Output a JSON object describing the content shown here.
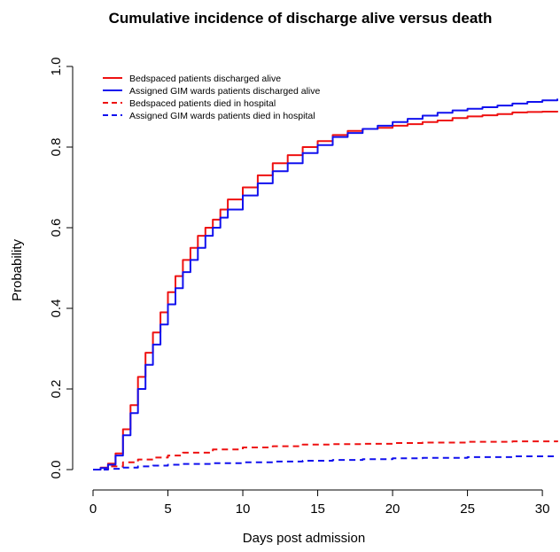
{
  "chart_data": {
    "type": "line",
    "title": "Cumulative incidence of discharge alive versus death",
    "xlabel": "Days post admission",
    "ylabel": "Probability",
    "xlim": [
      0,
      31
    ],
    "ylim": [
      0,
      1
    ],
    "xticks": [
      0,
      5,
      10,
      15,
      20,
      25,
      30
    ],
    "yticks": [
      0.0,
      0.2,
      0.4,
      0.6,
      0.8,
      1.0
    ],
    "xtick_labels": [
      "0",
      "5",
      "10",
      "15",
      "20",
      "25",
      "30"
    ],
    "ytick_labels": [
      "0.0",
      "0.2",
      "0.4",
      "0.6",
      "0.8",
      "1.0"
    ],
    "grid": false,
    "legend_position": "top-left",
    "series": [
      {
        "name": "Bedspaced patients discharged alive",
        "color": "#ee1111",
        "dash": "solid",
        "x": [
          0,
          0.5,
          1,
          1.5,
          2,
          2.5,
          3,
          3.5,
          4,
          4.5,
          5,
          5.5,
          6,
          6.5,
          7,
          7.5,
          8,
          8.5,
          9,
          10,
          11,
          12,
          13,
          14,
          15,
          16,
          17,
          18,
          19,
          20,
          21,
          22,
          23,
          24,
          25,
          26,
          27,
          28,
          29,
          30,
          31
        ],
        "y": [
          0,
          0.005,
          0.015,
          0.04,
          0.1,
          0.16,
          0.23,
          0.29,
          0.34,
          0.39,
          0.44,
          0.48,
          0.52,
          0.55,
          0.58,
          0.6,
          0.62,
          0.645,
          0.67,
          0.7,
          0.73,
          0.76,
          0.78,
          0.8,
          0.815,
          0.83,
          0.84,
          0.845,
          0.848,
          0.853,
          0.857,
          0.862,
          0.866,
          0.872,
          0.876,
          0.879,
          0.882,
          0.886,
          0.887,
          0.888,
          0.89
        ]
      },
      {
        "name": "Assigned GIM wards patients discharged alive",
        "color": "#1111ee",
        "dash": "solid",
        "x": [
          0,
          0.5,
          1,
          1.5,
          2,
          2.5,
          3,
          3.5,
          4,
          4.5,
          5,
          5.5,
          6,
          6.5,
          7,
          7.5,
          8,
          8.5,
          9,
          10,
          11,
          12,
          13,
          14,
          15,
          16,
          17,
          18,
          19,
          20,
          21,
          22,
          23,
          24,
          25,
          26,
          27,
          28,
          29,
          30,
          31
        ],
        "y": [
          0,
          0.004,
          0.012,
          0.035,
          0.085,
          0.14,
          0.2,
          0.26,
          0.31,
          0.36,
          0.41,
          0.45,
          0.49,
          0.52,
          0.55,
          0.58,
          0.6,
          0.625,
          0.645,
          0.68,
          0.71,
          0.74,
          0.76,
          0.785,
          0.805,
          0.825,
          0.835,
          0.845,
          0.853,
          0.862,
          0.87,
          0.878,
          0.885,
          0.891,
          0.895,
          0.899,
          0.903,
          0.908,
          0.912,
          0.916,
          0.92
        ]
      },
      {
        "name": "Bedspaced patients died in hospital",
        "color": "#ee1111",
        "dash": "dashed",
        "x": [
          0,
          1,
          2,
          3,
          4,
          5,
          6,
          8,
          10,
          12,
          14,
          16,
          18,
          20,
          22,
          25,
          28,
          31
        ],
        "y": [
          0,
          0.008,
          0.018,
          0.025,
          0.03,
          0.035,
          0.042,
          0.05,
          0.055,
          0.058,
          0.062,
          0.063,
          0.064,
          0.066,
          0.067,
          0.069,
          0.07,
          0.072
        ]
      },
      {
        "name": "Assigned GIM wards patients died in hospital",
        "color": "#1111ee",
        "dash": "dashed",
        "x": [
          0,
          1,
          2,
          3,
          4,
          5,
          6,
          8,
          10,
          12,
          14,
          16,
          18,
          20,
          22,
          25,
          28,
          31
        ],
        "y": [
          0,
          0.002,
          0.005,
          0.008,
          0.01,
          0.012,
          0.014,
          0.016,
          0.018,
          0.02,
          0.022,
          0.024,
          0.026,
          0.028,
          0.029,
          0.031,
          0.033,
          0.034
        ]
      }
    ]
  }
}
